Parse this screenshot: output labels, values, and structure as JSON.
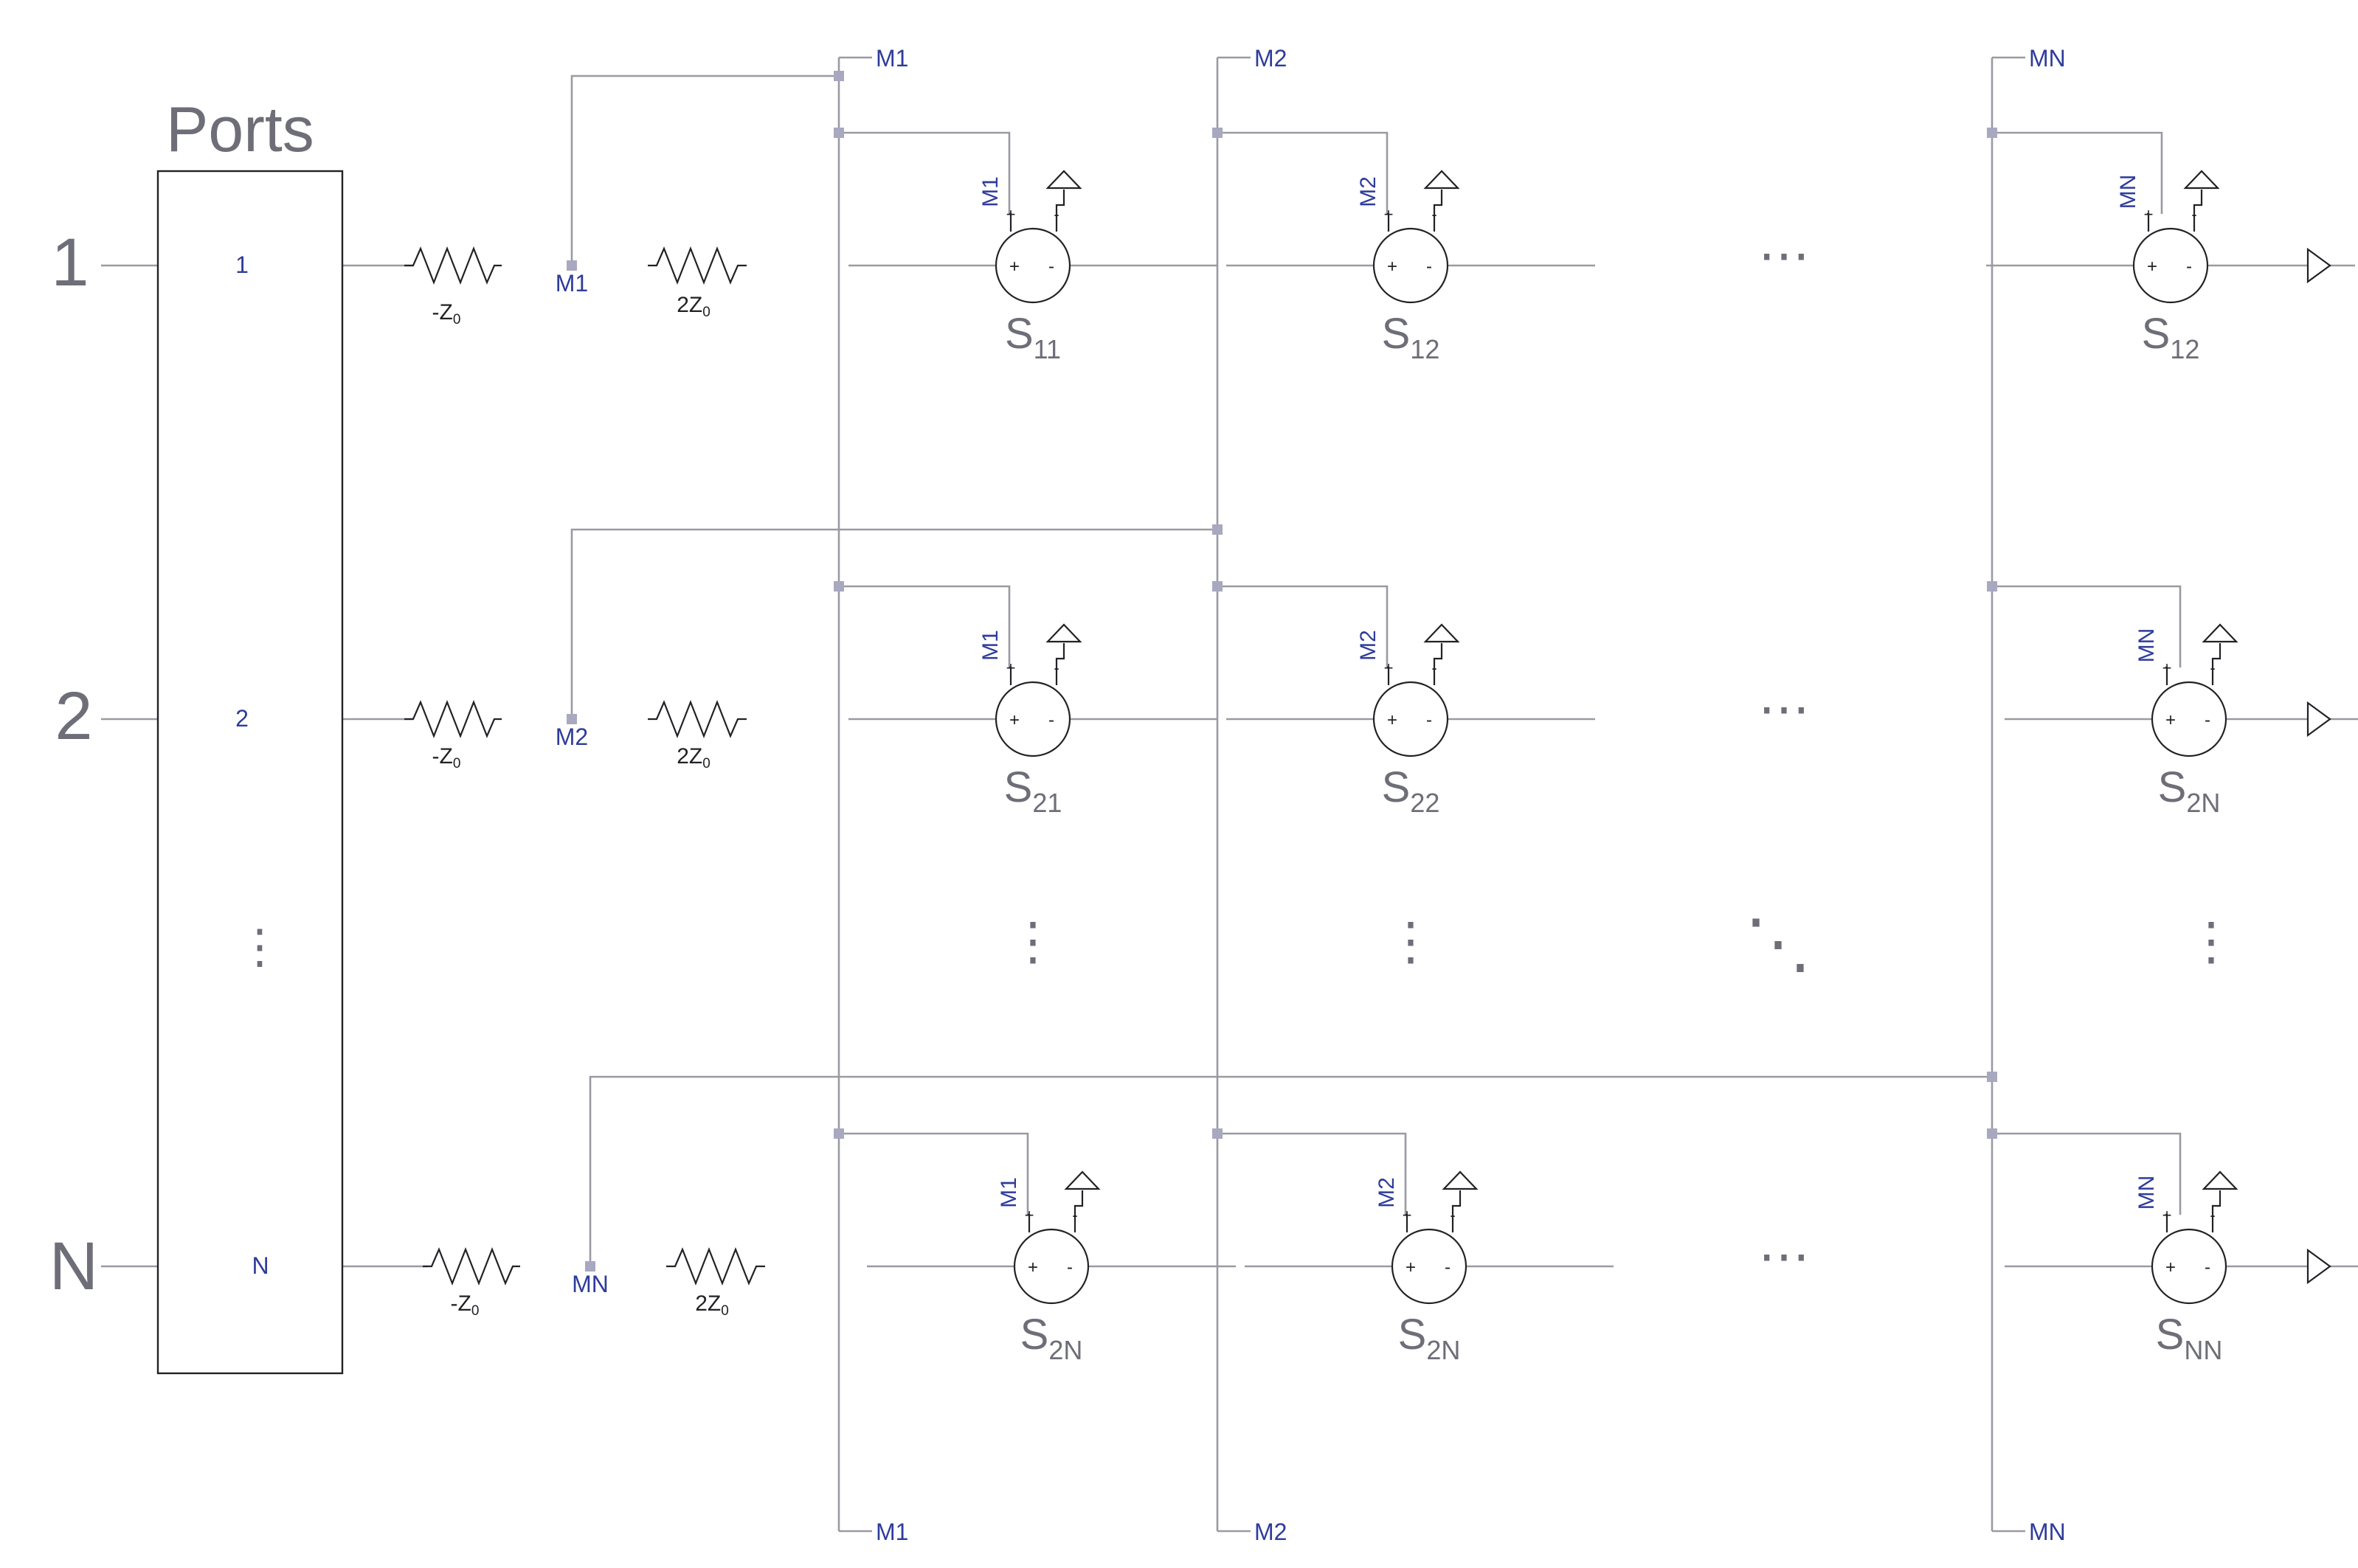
{
  "ports_block": {
    "title": "Ports"
  },
  "rows": [
    {
      "port": "1",
      "pin": "1",
      "node": "M1",
      "neg_z": "-Z",
      "two_z": "2Z",
      "sub": "0",
      "cont": "⋯"
    },
    {
      "port": "2",
      "pin": "2",
      "node": "M2",
      "neg_z": "-Z",
      "two_z": "2Z",
      "sub": "0",
      "cont": "⋯"
    },
    {
      "port": "N",
      "pin": "N",
      "node": "MN",
      "neg_z": "-Z",
      "two_z": "2Z",
      "sub": "0",
      "cont": "⋯"
    }
  ],
  "bus_labels": {
    "top": [
      "M1",
      "M2",
      "MN"
    ],
    "bottom": [
      "M1",
      "M2",
      "MN"
    ]
  },
  "sources": [
    {
      "ctrl": "M1",
      "S": "S",
      "sub": "11"
    },
    {
      "ctrl": "M2",
      "S": "S",
      "sub": "12"
    },
    {
      "ctrl": "MN",
      "S": "S",
      "sub": "12"
    },
    {
      "ctrl": "M1",
      "S": "S",
      "sub": "21"
    },
    {
      "ctrl": "M2",
      "S": "S",
      "sub": "22"
    },
    {
      "ctrl": "MN",
      "S": "S",
      "sub": "2N"
    },
    {
      "ctrl": "M1",
      "S": "S",
      "sub": "2N"
    },
    {
      "ctrl": "M2",
      "S": "S",
      "sub": "2N"
    },
    {
      "ctrl": "MN",
      "S": "S",
      "sub": "NN"
    }
  ],
  "ellipsis": {
    "vertical": "⋮",
    "diagonal": "⋱"
  },
  "pins": {
    "plus": "+",
    "minus": "-"
  }
}
